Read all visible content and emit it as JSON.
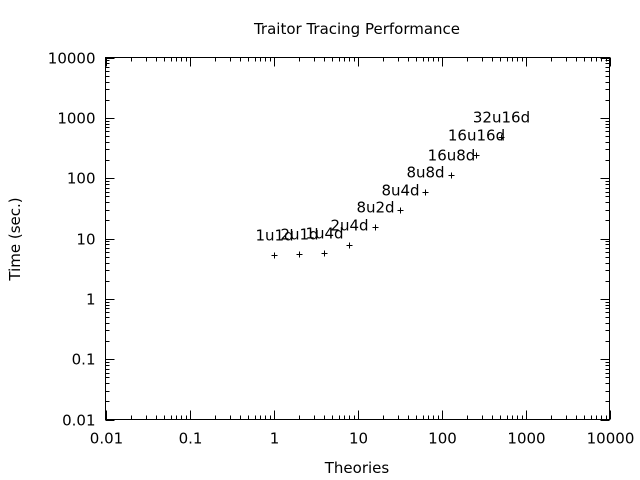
{
  "chart_data": {
    "type": "scatter",
    "title": "Traitor Tracing Performance",
    "xlabel": "Theories",
    "ylabel": "Time (sec.)",
    "x_scale": "log",
    "y_scale": "log",
    "xlim": [
      0.01,
      10000
    ],
    "ylim": [
      0.01,
      10000
    ],
    "x_ticks": [
      0.01,
      0.1,
      1,
      10,
      100,
      1000,
      10000
    ],
    "x_tick_labels": [
      "0.01",
      "0.1",
      "1",
      "10",
      "100",
      "1000",
      "10000"
    ],
    "y_ticks": [
      0.01,
      0.1,
      1,
      10,
      100,
      1000,
      10000
    ],
    "y_tick_labels": [
      "0.01",
      "0.1",
      "1",
      "10",
      "100",
      "1000",
      "10000"
    ],
    "grid": false,
    "legend": "none",
    "marker": "+",
    "points": [
      {
        "x": 1,
        "y": 5.3,
        "label": "1u1d"
      },
      {
        "x": 2,
        "y": 5.5,
        "label": "2u1d"
      },
      {
        "x": 4,
        "y": 5.7,
        "label": "1u4d"
      },
      {
        "x": 8,
        "y": 7.7,
        "label": "2u4d"
      },
      {
        "x": 16,
        "y": 15.5,
        "label": "8u2d"
      },
      {
        "x": 32,
        "y": 30,
        "label": "8u4d"
      },
      {
        "x": 64,
        "y": 59,
        "label": "8u8d"
      },
      {
        "x": 128,
        "y": 115,
        "label": "16u8d"
      },
      {
        "x": 256,
        "y": 240,
        "label": "16u16d"
      },
      {
        "x": 512,
        "y": 480,
        "label": "32u16d"
      }
    ]
  }
}
